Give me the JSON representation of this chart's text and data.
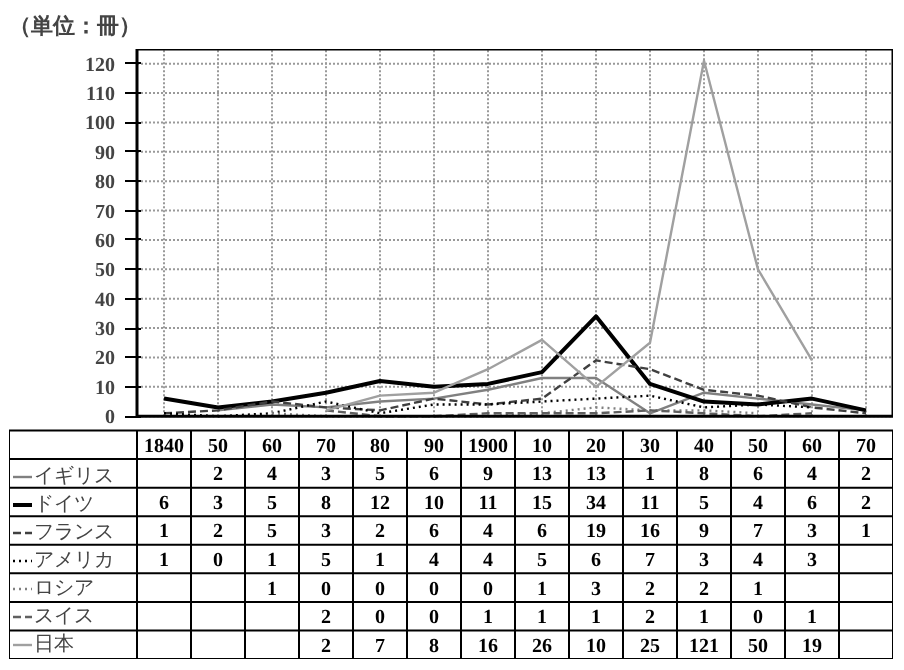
{
  "chart_data": {
    "type": "line",
    "title": "（単位：冊）",
    "categories": [
      "1840",
      "50",
      "60",
      "70",
      "80",
      "90",
      "1900",
      "10",
      "20",
      "30",
      "40",
      "50",
      "60",
      "70"
    ],
    "ylim": [
      0,
      125
    ],
    "yticks": [
      0,
      10,
      20,
      30,
      40,
      50,
      60,
      70,
      80,
      90,
      100,
      110,
      120
    ],
    "grid": true,
    "data_labels": true,
    "legend": "left",
    "series": [
      {
        "name": "イギリス",
        "color": "#808080",
        "line_style": "solid",
        "values": [
          null,
          2,
          4,
          3,
          5,
          6,
          9,
          13,
          13,
          1,
          8,
          6,
          4,
          2
        ]
      },
      {
        "name": "ドイツ",
        "color": "#000000",
        "line_style": "solid",
        "values": [
          6,
          3,
          5,
          8,
          12,
          10,
          11,
          15,
          34,
          11,
          5,
          4,
          6,
          2
        ]
      },
      {
        "name": "フランス",
        "color": "#404040",
        "line_style": "dashed",
        "values": [
          1,
          2,
          5,
          3,
          2,
          6,
          4,
          6,
          19,
          16,
          9,
          7,
          3,
          1
        ]
      },
      {
        "name": "アメリカ",
        "color": "#000000",
        "line_style": "dotted",
        "values": [
          1,
          0,
          1,
          5,
          1,
          4,
          4,
          5,
          6,
          7,
          3,
          4,
          3,
          null
        ]
      },
      {
        "name": "ロシア",
        "color": "#808080",
        "line_style": "dotted",
        "values": [
          null,
          null,
          1,
          0,
          0,
          0,
          0,
          1,
          3,
          2,
          2,
          1,
          null,
          null
        ]
      },
      {
        "name": "スイス",
        "color": "#606060",
        "line_style": "dashed",
        "values": [
          null,
          null,
          null,
          2,
          0,
          0,
          1,
          1,
          1,
          2,
          1,
          0,
          1,
          null
        ]
      },
      {
        "name": "日本",
        "color": "#a0a0a0",
        "line_style": "solid",
        "values": [
          null,
          null,
          null,
          2,
          7,
          8,
          16,
          26,
          10,
          25,
          121,
          50,
          19,
          null
        ]
      }
    ]
  }
}
